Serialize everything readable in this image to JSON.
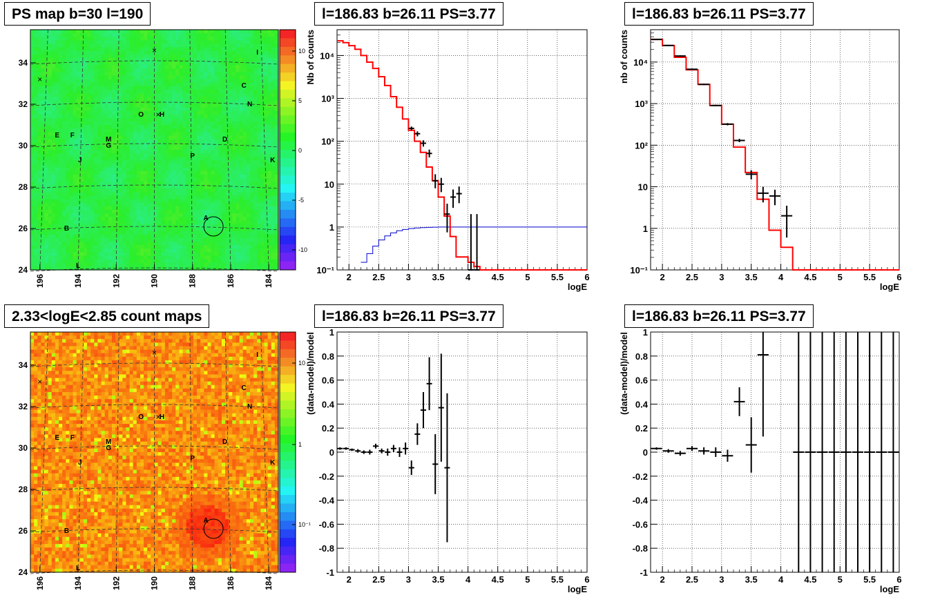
{
  "panels": {
    "map1": {
      "title": "PS map b=30 l=190",
      "colorbar_ticks": [
        "10",
        "5",
        "0",
        "-5",
        "-10"
      ]
    },
    "map2": {
      "title": "2.33<logE<2.85 count maps",
      "colorbar_ticks": [
        "10",
        "1",
        "10⁻¹"
      ]
    },
    "spec1": {
      "title": "l=186.83 b=26.11 PS=3.77"
    },
    "spec2": {
      "title": "l=186.83 b=26.11 PS=3.77"
    },
    "res1": {
      "title": "l=186.83 b=26.11 PS=3.77"
    },
    "res2": {
      "title": "l=186.83 b=26.11 PS=3.77"
    }
  },
  "map_axes": {
    "x_ticks": [
      "196",
      "194",
      "192",
      "190",
      "188",
      "186",
      "184"
    ],
    "y_ticks": [
      "34",
      "32",
      "30",
      "28",
      "26",
      "24"
    ],
    "source_labels": [
      "I",
      "C",
      "N",
      "O",
      "H",
      "E",
      "F",
      "M",
      "G",
      "D",
      "J",
      "P",
      "K",
      "A",
      "B",
      "L"
    ]
  },
  "chart_data": [
    {
      "type": "heatmap",
      "title": "PS map b=30 l=190",
      "x_range": [
        196.5,
        183.5
      ],
      "y_range": [
        24,
        35.6
      ],
      "colorbar_range": [
        -12,
        12
      ],
      "colorbar_ticks": [
        10,
        5,
        0,
        -5,
        -10
      ],
      "sources": [
        {
          "label": "I",
          "l": 184.6,
          "b": 34.4
        },
        {
          "label": "C",
          "l": 185.3,
          "b": 32.8
        },
        {
          "label": "N",
          "l": 185.0,
          "b": 31.9
        },
        {
          "label": "O",
          "l": 190.7,
          "b": 31.4
        },
        {
          "label": "H",
          "l": 189.6,
          "b": 31.4
        },
        {
          "label": "E",
          "l": 195.1,
          "b": 30.4
        },
        {
          "label": "F",
          "l": 194.3,
          "b": 30.4
        },
        {
          "label": "M",
          "l": 192.4,
          "b": 30.2
        },
        {
          "label": "G",
          "l": 192.4,
          "b": 29.9
        },
        {
          "label": "D",
          "l": 186.3,
          "b": 30.2
        },
        {
          "label": "J",
          "l": 193.9,
          "b": 29.2
        },
        {
          "label": "P",
          "l": 188.0,
          "b": 29.4
        },
        {
          "label": "K",
          "l": 183.8,
          "b": 29.2
        },
        {
          "label": "A",
          "l": 187.3,
          "b": 26.4
        },
        {
          "label": "B",
          "l": 194.6,
          "b": 25.9
        },
        {
          "label": "L",
          "l": 194.0,
          "b": 24.1
        }
      ],
      "crosses": [
        {
          "l": 196.0,
          "b": 33.2
        },
        {
          "l": 190.0,
          "b": 34.6
        },
        {
          "l": 189.8,
          "b": 31.5
        }
      ]
    },
    {
      "type": "line",
      "title": "l=186.83 b=26.11 PS=3.77",
      "xlabel": "logE",
      "ylabel": "Nb of counts",
      "x_range": [
        1.8,
        6
      ],
      "ylim": [
        0.1,
        40000
      ],
      "log_y": true,
      "x_ticks": [
        2,
        2.5,
        3,
        3.5,
        4,
        4.5,
        5,
        5.5,
        6
      ],
      "y_ticks": [
        0.1,
        1,
        10,
        100,
        1000,
        10000
      ],
      "y_tick_labels": [
        "10⁻¹",
        "1",
        "10",
        "10²",
        "10³",
        "10⁴"
      ],
      "grid": true,
      "series": [
        {
          "style": "step",
          "color": "#ff0000",
          "edges": [
            1.8,
            1.9,
            2.0,
            2.1,
            2.2,
            2.3,
            2.4,
            2.5,
            2.6,
            2.7,
            2.8,
            2.9,
            3.0,
            3.1,
            3.2,
            3.3,
            3.4,
            3.5,
            3.6,
            3.7,
            3.8,
            3.9,
            4.0,
            4.1,
            4.2,
            6.0
          ],
          "values": [
            22000,
            20000,
            17000,
            14000,
            10000,
            7000,
            5000,
            3200,
            2000,
            1100,
            620,
            330,
            180,
            100,
            55,
            25,
            12,
            5,
            1.8,
            0.6,
            0.2,
            0.2,
            0.15,
            0.12,
            0.1
          ]
        },
        {
          "style": "step",
          "color": "#0000cc",
          "edges": [
            2.2,
            2.3,
            2.4,
            2.5,
            2.6,
            2.7,
            2.8,
            2.9,
            3.0,
            3.1,
            3.2,
            3.3,
            3.4,
            3.5,
            3.6,
            3.7,
            6.0
          ],
          "values": [
            0.15,
            0.24,
            0.36,
            0.5,
            0.62,
            0.73,
            0.82,
            0.88,
            0.92,
            0.95,
            0.97,
            0.98,
            0.99,
            1.0,
            1.0,
            1.0
          ]
        },
        {
          "style": "points",
          "color": "#000000",
          "points": [
            {
              "x": 3.05,
              "y": 200,
              "ylo": 180,
              "yhi": 220
            },
            {
              "x": 3.15,
              "y": 150,
              "ylo": 130,
              "yhi": 170
            },
            {
              "x": 3.25,
              "y": 90,
              "ylo": 75,
              "yhi": 105
            },
            {
              "x": 3.35,
              "y": 52,
              "ylo": 42,
              "yhi": 64
            },
            {
              "x": 3.45,
              "y": 12,
              "ylo": 8,
              "yhi": 17
            },
            {
              "x": 3.55,
              "y": 10,
              "ylo": 6.5,
              "yhi": 14
            },
            {
              "x": 3.65,
              "y": 2,
              "ylo": 0.75,
              "yhi": 3.5
            },
            {
              "x": 3.75,
              "y": 5,
              "ylo": 2.8,
              "yhi": 7.5
            },
            {
              "x": 3.85,
              "y": 6,
              "ylo": 3.6,
              "yhi": 8.8
            },
            {
              "x": 4.05,
              "y": 0.1,
              "ylo": 0.1,
              "yhi": 2
            },
            {
              "x": 4.15,
              "y": 0.1,
              "ylo": 0.1,
              "yhi": 2
            }
          ]
        }
      ]
    },
    {
      "type": "line",
      "title": "l=186.83 b=26.11 PS=3.77",
      "xlabel": "logE",
      "ylabel": "nb of counts",
      "x_range": [
        1.8,
        6
      ],
      "ylim": [
        0.1,
        60000
      ],
      "log_y": true,
      "x_ticks": [
        2,
        2.5,
        3,
        3.5,
        4,
        4.5,
        5,
        5.5,
        6
      ],
      "y_ticks": [
        0.1,
        1,
        10,
        100,
        1000,
        10000
      ],
      "y_tick_labels": [
        "10⁻¹",
        "1",
        "10",
        "10²",
        "10³",
        "10⁴"
      ],
      "grid": true,
      "series": [
        {
          "style": "step",
          "color": "#ff0000",
          "edges": [
            1.8,
            2.0,
            2.2,
            2.4,
            2.6,
            2.8,
            3.0,
            3.2,
            3.4,
            3.6,
            3.8,
            4.0,
            4.2,
            6.0
          ],
          "values": [
            35000,
            25000,
            13000,
            6500,
            2900,
            900,
            320,
            90,
            22,
            5,
            0.9,
            0.35,
            0.1
          ]
        },
        {
          "style": "points",
          "color": "#000000",
          "points": [
            {
              "x": 1.9,
              "y": 35000,
              "ylo": 34000,
              "yhi": 36000
            },
            {
              "x": 2.1,
              "y": 25000,
              "ylo": 24000,
              "yhi": 26000
            },
            {
              "x": 2.3,
              "y": 14000,
              "ylo": 13500,
              "yhi": 14500
            },
            {
              "x": 2.5,
              "y": 6700,
              "ylo": 6400,
              "yhi": 7000
            },
            {
              "x": 2.7,
              "y": 2900,
              "ylo": 2800,
              "yhi": 3000
            },
            {
              "x": 2.9,
              "y": 900,
              "ylo": 860,
              "yhi": 940
            },
            {
              "x": 3.1,
              "y": 320,
              "ylo": 300,
              "yhi": 340
            },
            {
              "x": 3.3,
              "y": 130,
              "ylo": 118,
              "yhi": 142
            },
            {
              "x": 3.5,
              "y": 20,
              "ylo": 15,
              "yhi": 25
            },
            {
              "x": 3.7,
              "y": 7,
              "ylo": 4.2,
              "yhi": 10
            },
            {
              "x": 3.9,
              "y": 6,
              "ylo": 3.6,
              "yhi": 8.5
            },
            {
              "x": 4.1,
              "y": 2,
              "ylo": 0.6,
              "yhi": 3.5
            }
          ]
        }
      ]
    },
    {
      "type": "heatmap",
      "title": "2.33<logE<2.85 count maps",
      "x_range": [
        196.5,
        183.5
      ],
      "y_range": [
        24,
        35.6
      ],
      "colorbar_range": [
        0.02,
        30
      ],
      "colorbar_log": true,
      "colorbar_ticks": [
        10,
        1,
        0.1
      ]
    },
    {
      "type": "scatter",
      "title": "l=186.83 b=26.11 PS=3.77",
      "xlabel": "logE",
      "ylabel": "(data-model)/model",
      "x_range": [
        1.8,
        6
      ],
      "ylim": [
        -1,
        1
      ],
      "x_ticks": [
        2,
        2.5,
        3,
        3.5,
        4,
        4.5,
        5,
        5.5,
        6
      ],
      "y_ticks": [
        -1,
        -0.8,
        -0.6,
        -0.4,
        -0.2,
        0,
        0.2,
        0.4,
        0.6,
        0.8,
        1
      ],
      "grid": true,
      "points": [
        {
          "x": 1.85,
          "y": 0.03,
          "err": 0.01
        },
        {
          "x": 1.95,
          "y": 0.03,
          "err": 0.01
        },
        {
          "x": 2.05,
          "y": 0.02,
          "err": 0.01
        },
        {
          "x": 2.15,
          "y": 0.01,
          "err": 0.015
        },
        {
          "x": 2.25,
          "y": 0.0,
          "err": 0.015
        },
        {
          "x": 2.35,
          "y": 0.0,
          "err": 0.02
        },
        {
          "x": 2.45,
          "y": 0.05,
          "err": 0.02
        },
        {
          "x": 2.55,
          "y": 0.01,
          "err": 0.02
        },
        {
          "x": 2.65,
          "y": 0.0,
          "err": 0.03
        },
        {
          "x": 2.75,
          "y": 0.03,
          "err": 0.03
        },
        {
          "x": 2.85,
          "y": 0.0,
          "err": 0.04
        },
        {
          "x": 2.95,
          "y": 0.03,
          "err": 0.05
        },
        {
          "x": 3.05,
          "y": -0.13,
          "err": 0.06
        },
        {
          "x": 3.15,
          "y": 0.15,
          "err": 0.09
        },
        {
          "x": 3.25,
          "y": 0.35,
          "err": 0.15
        },
        {
          "x": 3.35,
          "y": 0.57,
          "err": 0.22
        },
        {
          "x": 3.45,
          "y": -0.1,
          "err": 0.25
        },
        {
          "x": 3.55,
          "y": 0.37,
          "err": 0.45
        },
        {
          "x": 3.65,
          "y": -0.13,
          "err": 0.62
        }
      ]
    },
    {
      "type": "scatter",
      "title": "l=186.83 b=26.11 PS=3.77",
      "xlabel": "logE",
      "ylabel": "(data-model)/model",
      "x_range": [
        1.8,
        6
      ],
      "ylim": [
        -1,
        1
      ],
      "x_ticks": [
        2,
        2.5,
        3,
        3.5,
        4,
        4.5,
        5,
        5.5,
        6
      ],
      "y_ticks": [
        -1,
        -0.8,
        -0.6,
        -0.4,
        -0.2,
        0,
        0.2,
        0.4,
        0.6,
        0.8,
        1
      ],
      "grid": true,
      "points": [
        {
          "x": 1.9,
          "y": 0.03,
          "err": 0.01
        },
        {
          "x": 2.1,
          "y": 0.01,
          "err": 0.015
        },
        {
          "x": 2.3,
          "y": -0.01,
          "err": 0.02
        },
        {
          "x": 2.5,
          "y": 0.03,
          "err": 0.02
        },
        {
          "x": 2.7,
          "y": 0.01,
          "err": 0.03
        },
        {
          "x": 2.9,
          "y": 0.0,
          "err": 0.04
        },
        {
          "x": 3.1,
          "y": -0.03,
          "err": 0.05
        },
        {
          "x": 3.3,
          "y": 0.42,
          "err": 0.12
        },
        {
          "x": 3.5,
          "y": 0.06,
          "err": 0.23
        },
        {
          "x": 3.7,
          "y": 0.81,
          "err": 0.68
        },
        {
          "x": 4.3,
          "y": 0,
          "err": 1.5
        },
        {
          "x": 4.5,
          "y": 0,
          "err": 1.5
        },
        {
          "x": 4.7,
          "y": 0,
          "err": 1.5
        },
        {
          "x": 4.9,
          "y": 0,
          "err": 1.5
        },
        {
          "x": 5.1,
          "y": 0,
          "err": 1.5
        },
        {
          "x": 5.3,
          "y": 0,
          "err": 1.5
        },
        {
          "x": 5.5,
          "y": 0,
          "err": 1.5
        },
        {
          "x": 5.7,
          "y": 0,
          "err": 1.5
        },
        {
          "x": 5.9,
          "y": 0,
          "err": 1.5
        }
      ]
    }
  ]
}
